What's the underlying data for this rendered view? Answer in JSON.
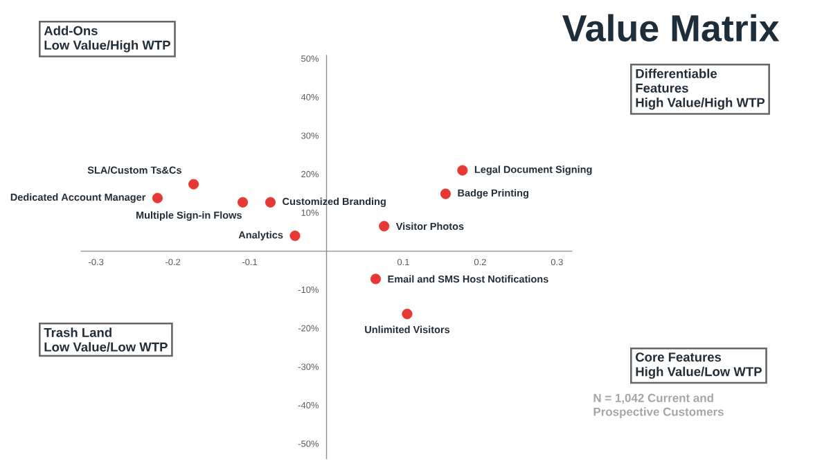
{
  "chart_data": {
    "type": "scatter",
    "title": "Value Matrix",
    "x": [
      0.177,
      0.155,
      0.075,
      -0.073,
      -0.109,
      -0.173,
      -0.22,
      -0.041,
      0.064,
      0.105
    ],
    "series": [
      {
        "color": "#e53935",
        "values": [
          21,
          14.9,
          6.5,
          12.7,
          12.7,
          17.4,
          13.8,
          4,
          -7.2,
          -16.3
        ]
      }
    ],
    "xlim": [
      -0.32,
      0.32
    ],
    "ylim": [
      -54,
      51
    ],
    "xticks": [
      -0.3,
      -0.2,
      -0.1,
      0.1,
      0.2,
      0.3
    ],
    "yticks": [
      {
        "value": -50,
        "label": "-50%"
      },
      {
        "value": -40,
        "label": "-40%"
      },
      {
        "value": -30,
        "label": "-30%"
      },
      {
        "value": -20,
        "label": "-20%"
      },
      {
        "value": -10,
        "label": "-10%"
      },
      {
        "value": 10,
        "label": "10%"
      },
      {
        "value": 20,
        "label": "20%"
      },
      {
        "value": 30,
        "label": "30%"
      },
      {
        "value": 40,
        "label": "40%"
      },
      {
        "value": 50,
        "label": "50%"
      }
    ],
    "marker": "circle",
    "grid": false,
    "annotations": [
      "Add-Ons",
      "Low Value/High WTP",
      "Differentiable",
      "Features",
      "High Value/High WTP",
      "Trash Land",
      "Low Value/Low WTP",
      "Core Features",
      "High Value/Low WTP",
      "N = 1,042 Current and",
      "Prospective Customers",
      {
        "text": "Legal Document Signing",
        "x": 0.177,
        "y": 21
      },
      {
        "text": "Badge Printing",
        "x": 0.155,
        "y": 14.9
      },
      {
        "text": "Visitor Photos",
        "x": 0.075,
        "y": 6.5
      },
      {
        "text": "Customized Branding",
        "x": -0.073,
        "y": 12.7
      },
      {
        "text": "Multiple Sign-in Flows",
        "x": -0.109,
        "y": 12.7
      },
      {
        "text": "SLA/Custom Ts&Cs",
        "x": -0.173,
        "y": 17.4
      },
      {
        "text": "Dedicated Account Manager",
        "x": -0.22,
        "y": 13.8
      },
      {
        "text": "Analytics",
        "x": -0.041,
        "y": 4
      },
      {
        "text": "Email and SMS Host Notifications",
        "x": 0.064,
        "y": -7.2
      },
      {
        "text": "Unlimited Visitors",
        "x": 0.105,
        "y": -16.3
      }
    ]
  }
}
